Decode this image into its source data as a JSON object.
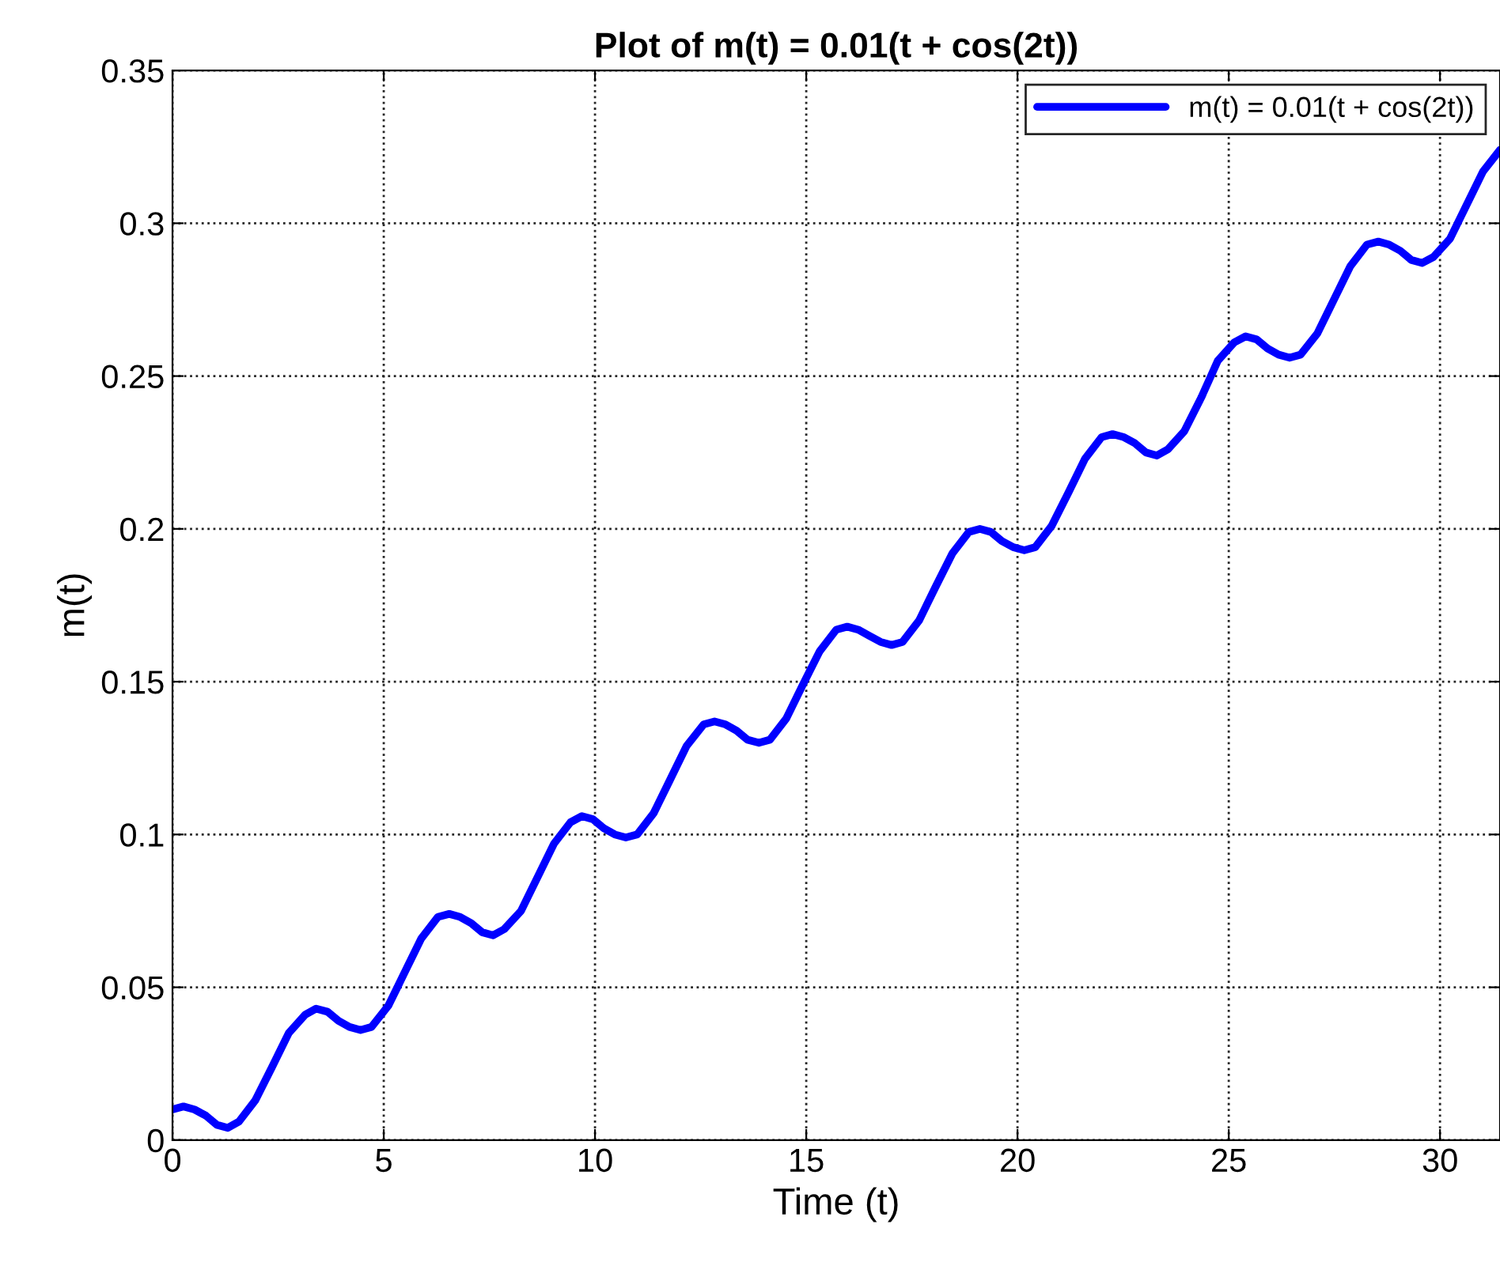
{
  "chart_data": {
    "type": "line",
    "title": "Plot of m(t) = 0.01(t + cos(2t))",
    "xlabel": "Time (t)",
    "ylabel": "m(t)",
    "xlim": [
      0,
      31.42
    ],
    "xticks": [
      0,
      5,
      10,
      15,
      20,
      25,
      30
    ],
    "ylim": [
      0,
      0.35
    ],
    "yticks": [
      0,
      0.05,
      0.1,
      0.15,
      0.2,
      0.25,
      0.3,
      0.35
    ],
    "grid": true,
    "legend": "top right",
    "marker": "none",
    "line_style": "solid",
    "series": [
      {
        "name": "m(t) = 0.01(t + cos(2t))",
        "color": "#0000ff",
        "x": [
          0,
          0.26,
          0.52,
          0.79,
          1.05,
          1.31,
          1.57,
          1.96,
          2.36,
          2.75,
          3.14,
          3.4,
          3.67,
          3.93,
          4.19,
          4.45,
          4.71,
          5.11,
          5.5,
          5.89,
          6.28,
          6.55,
          6.81,
          7.07,
          7.33,
          7.59,
          7.85,
          8.25,
          8.64,
          9.03,
          9.42,
          9.69,
          9.95,
          10.21,
          10.47,
          10.73,
          11.0,
          11.39,
          11.78,
          12.17,
          12.57,
          12.83,
          13.09,
          13.35,
          13.61,
          13.88,
          14.14,
          14.53,
          14.92,
          15.32,
          15.71,
          15.97,
          16.23,
          16.49,
          16.76,
          17.02,
          17.28,
          17.67,
          18.06,
          18.46,
          18.85,
          19.11,
          19.37,
          19.63,
          19.9,
          20.16,
          20.42,
          20.81,
          21.21,
          21.6,
          21.99,
          22.25,
          22.52,
          22.78,
          23.04,
          23.3,
          23.56,
          23.95,
          24.35,
          24.74,
          25.13,
          25.4,
          25.66,
          25.92,
          26.18,
          26.44,
          26.7,
          27.1,
          27.49,
          27.88,
          28.27,
          28.54,
          28.8,
          29.06,
          29.32,
          29.58,
          29.85,
          30.24,
          30.63,
          31.02,
          31.42
        ],
        "values": [
          0.01,
          0.011,
          0.01,
          0.008,
          0.005,
          0.004,
          0.006,
          0.013,
          0.024,
          0.035,
          0.041,
          0.043,
          0.042,
          0.039,
          0.037,
          0.036,
          0.037,
          0.044,
          0.055,
          0.066,
          0.073,
          0.074,
          0.073,
          0.071,
          0.068,
          0.067,
          0.069,
          0.075,
          0.086,
          0.097,
          0.104,
          0.106,
          0.105,
          0.102,
          0.1,
          0.099,
          0.1,
          0.107,
          0.118,
          0.129,
          0.136,
          0.137,
          0.136,
          0.134,
          0.131,
          0.13,
          0.131,
          0.138,
          0.149,
          0.16,
          0.167,
          0.168,
          0.167,
          0.165,
          0.163,
          0.162,
          0.163,
          0.17,
          0.181,
          0.192,
          0.199,
          0.2,
          0.199,
          0.196,
          0.194,
          0.193,
          0.194,
          0.201,
          0.212,
          0.223,
          0.23,
          0.231,
          0.23,
          0.228,
          0.225,
          0.224,
          0.226,
          0.232,
          0.243,
          0.255,
          0.261,
          0.263,
          0.262,
          0.259,
          0.257,
          0.256,
          0.257,
          0.264,
          0.275,
          0.286,
          0.293,
          0.294,
          0.293,
          0.291,
          0.288,
          0.287,
          0.289,
          0.295,
          0.306,
          0.317,
          0.324
        ]
      }
    ]
  }
}
